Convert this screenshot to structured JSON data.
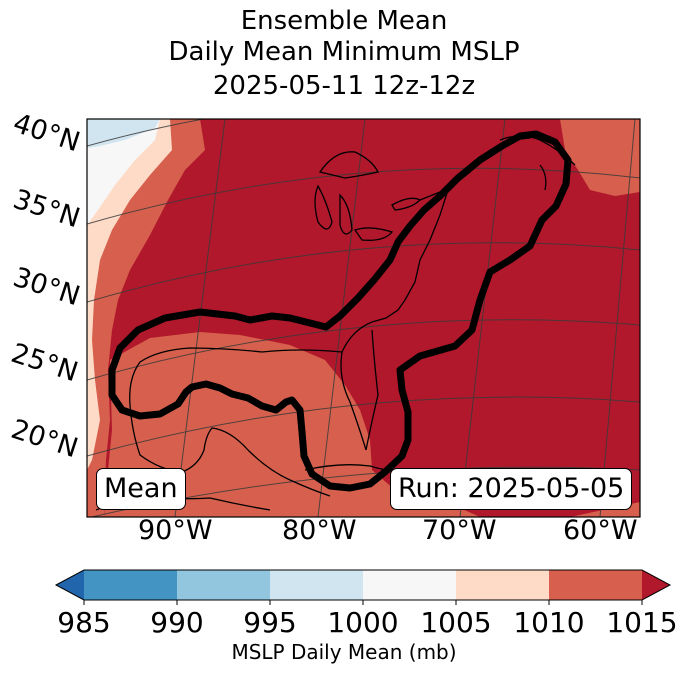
{
  "title": {
    "line1": "Ensemble Mean",
    "line2": "Daily Mean Minimum MSLP",
    "line3": "2025-05-11 12z-12z"
  },
  "map": {
    "lat_labels": [
      "40°N",
      "35°N",
      "30°N",
      "25°N",
      "20°N"
    ],
    "lon_labels": [
      "90°W",
      "80°W",
      "70°W",
      "60°W"
    ],
    "legend_badge": "Mean",
    "run_badge": "Run: 2025-05-05"
  },
  "colorbar": {
    "ticks": [
      "985",
      "990",
      "995",
      "1000",
      "1005",
      "1010",
      "1015"
    ],
    "label": "MSLP Daily Mean (mb)",
    "colors": [
      "#2166ac",
      "#4393c3",
      "#92c5de",
      "#d1e5f0",
      "#f7f7f7",
      "#fddbc7",
      "#d6604d",
      "#b2182b"
    ]
  },
  "colors": {
    "band_1015_plus": "#b2182b",
    "band_1010_1015": "#d6604d",
    "band_1005_1010": "#fddbc7",
    "band_1000_1005": "#f7f7f7",
    "band_995_1000": "#d1e5f0",
    "contour": "#000000"
  }
}
